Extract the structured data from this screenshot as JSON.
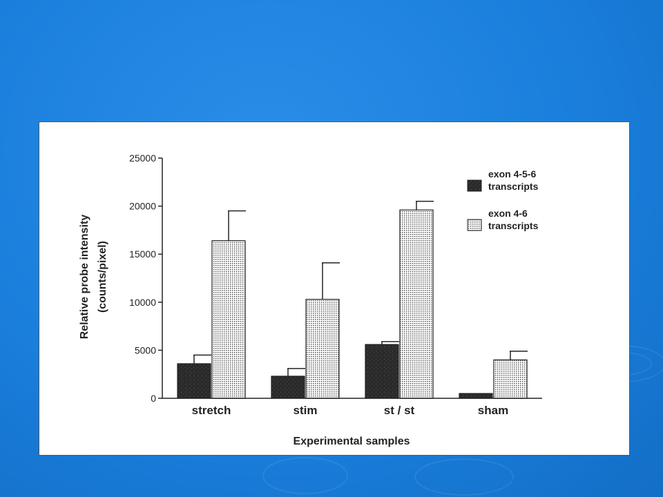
{
  "slide": {
    "background_color": "#1a7fdc",
    "panel_color": "#ffffff"
  },
  "chart_data": {
    "type": "bar",
    "categories": [
      "stretch",
      "stim",
      "st / st",
      "sham"
    ],
    "series": [
      {
        "name": "exon 4-5-6 transcripts",
        "legend_lines": [
          "exon 4-5-6",
          "transcripts"
        ],
        "fill": "dark-speckled",
        "color": "#2e2e2e",
        "values": [
          3600,
          2300,
          5600,
          500
        ],
        "errors": [
          900,
          800,
          300,
          0
        ]
      },
      {
        "name": "exon 4-6 transcripts",
        "legend_lines": [
          "exon 4-6",
          "transcripts"
        ],
        "fill": "dotted-grid",
        "color": "#ffffff",
        "values": [
          16400,
          10300,
          19600,
          4000
        ],
        "errors": [
          3100,
          3800,
          900,
          900
        ]
      }
    ],
    "ylabel_lines": [
      "Relative probe intensity",
      "(counts/pixel)"
    ],
    "xlabel": "Experimental samples",
    "ylim": [
      0,
      25000
    ],
    "yticks": [
      0,
      5000,
      10000,
      15000,
      20000,
      25000
    ],
    "ytick_labels": [
      "0",
      "5000",
      "10000",
      "15000",
      "20000",
      "25000"
    ],
    "grid": false,
    "legend_position": "top-right"
  }
}
